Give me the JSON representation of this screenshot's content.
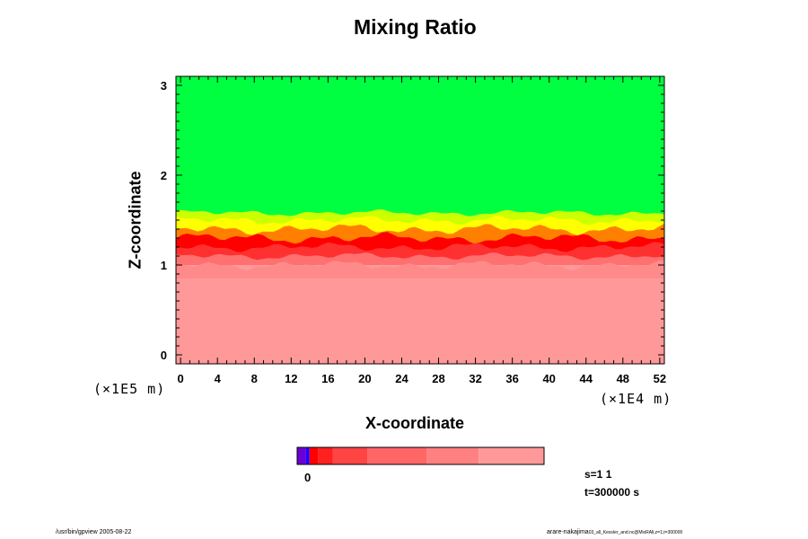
{
  "chart_data": {
    "type": "heatmap",
    "title": "Mixing Ratio",
    "xlabel": "X-coordinate",
    "ylabel": "Z-coordinate",
    "x_unit": "(×1E4 m)",
    "y_unit": "(×1E5 m)",
    "x_ticks": [
      "0",
      "4",
      "8",
      "12",
      "16",
      "20",
      "24",
      "28",
      "32",
      "36",
      "40",
      "44",
      "48",
      "52"
    ],
    "y_ticks": [
      "0",
      "1",
      "2",
      "3"
    ],
    "xlim": [
      -0.5,
      52.5
    ],
    "ylim": [
      -0.1,
      3.1
    ],
    "regions": [
      {
        "name": "upper",
        "z_range": [
          1.55,
          3.1
        ],
        "color": "#00ff40"
      },
      {
        "name": "transition",
        "z_range": [
          1.1,
          1.6
        ],
        "colors": [
          "#ccff00",
          "#ffff00",
          "#ff8000",
          "#ff0000"
        ]
      },
      {
        "name": "lower",
        "z_range": [
          -0.1,
          1.1
        ],
        "color": "#ff9999"
      }
    ],
    "colorbar": {
      "colors": [
        "#6b00d6",
        "#2200ff",
        "#ff0000",
        "#ff2020",
        "#ff4444",
        "#ff6666",
        "#ff8080",
        "#ff9999"
      ],
      "widths": [
        0.035,
        0.015,
        0.035,
        0.06,
        0.14,
        0.24,
        0.21,
        0.265
      ],
      "label": "0"
    }
  },
  "info": {
    "scale": "s=1 1",
    "time": "t=300000 s"
  },
  "footer": {
    "left": "/usr/bin/gpview 2005-08-22",
    "right": "arare-nakajima",
    "right_small": "03_all_Kessler_and.nc@MixRAll,z=1,t=300000"
  }
}
